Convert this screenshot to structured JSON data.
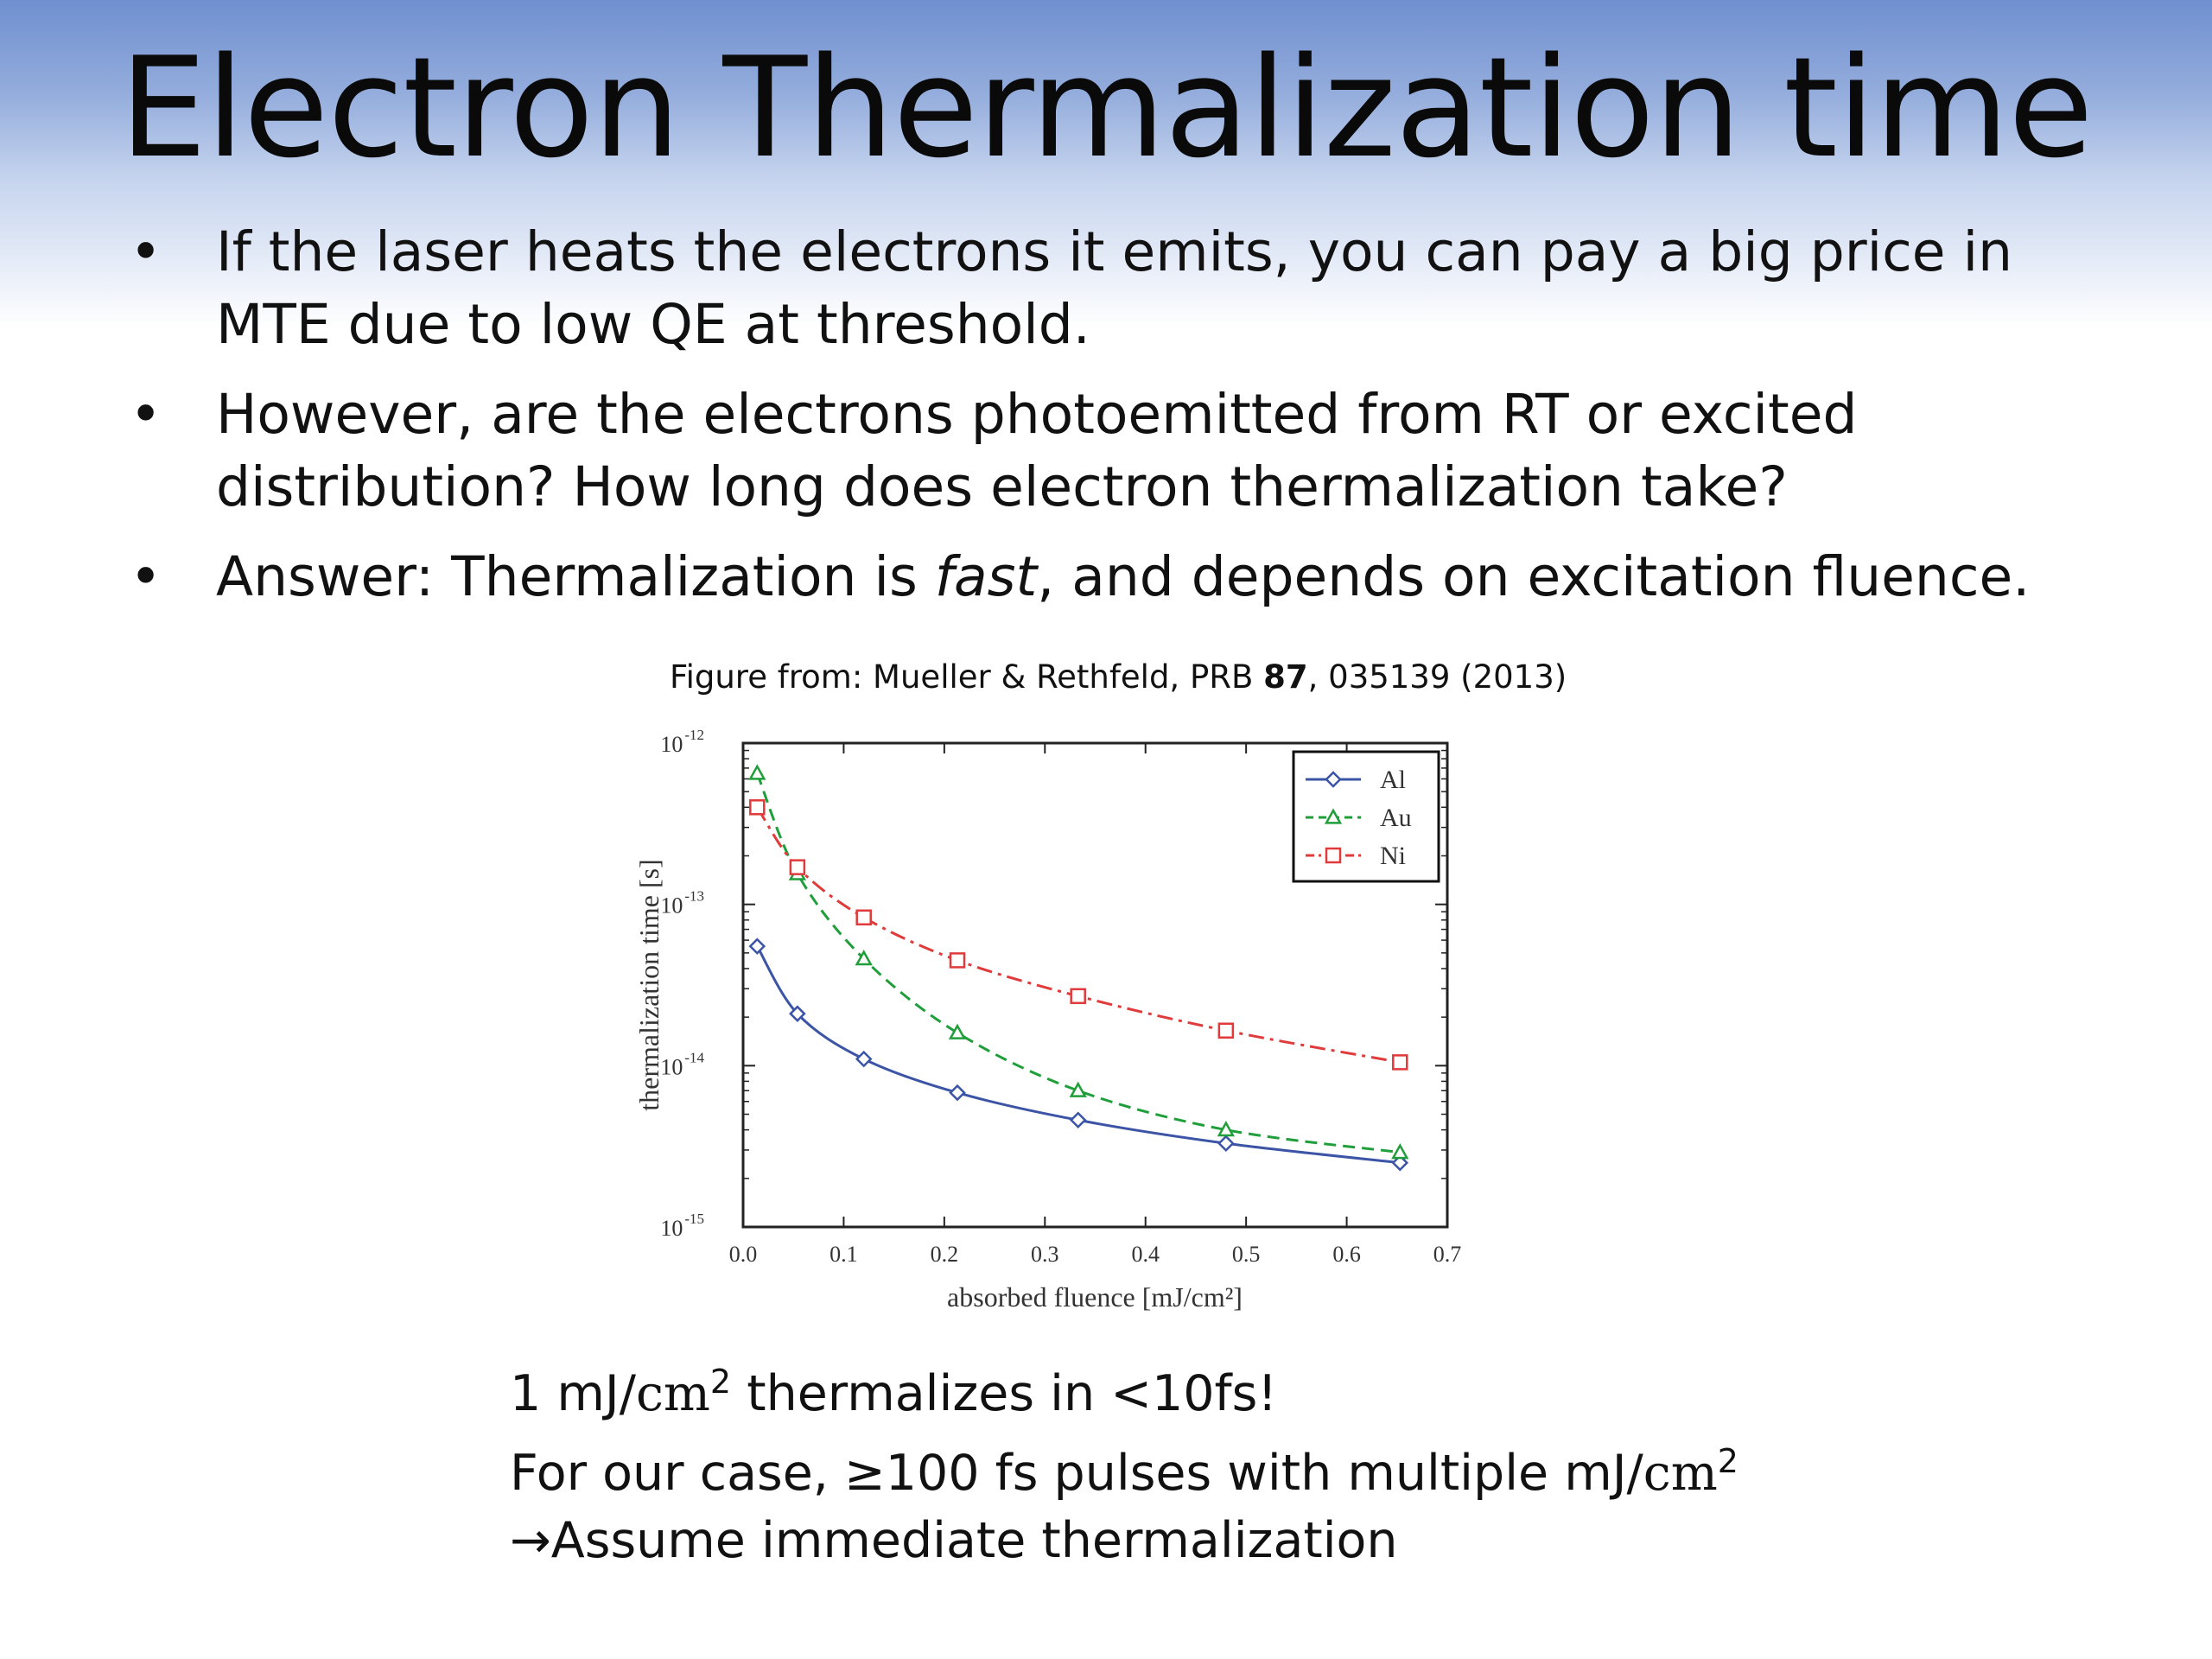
{
  "slide": {
    "title": "Electron Thermalization time",
    "bullets": [
      "If the laser heats the electrons it emits, you can pay a big price in MTE due to low QE at threshold.",
      "However, are the electrons photoemitted from RT or excited distribution? How long does electron thermalization take?"
    ],
    "bullet3": {
      "pre": "Answer: Thermalization is ",
      "italic": "fast",
      "post": ", and depends on excitation fluence."
    },
    "bullet_marker": "•",
    "credit": {
      "pre": "Figure from: Mueller & Rethfeld, PRB ",
      "bold": "87",
      "post": ", 035139 (2013)"
    },
    "notes": {
      "line1_num": "1 mJ/",
      "line1_unit": "cm",
      "line1_sup": "2",
      "line1_tail": " thermalizes in <10fs!",
      "line2_pre": "For our case,  ≥100 fs pulses with multiple mJ/",
      "line2_unit": "cm",
      "line2_sup": "2",
      "line3": "→Assume immediate thermalization"
    }
  },
  "chart_data": {
    "type": "line",
    "title": "",
    "xlabel": "absorbed fluence [mJ/cm²]",
    "ylabel": "thermalization time [s]",
    "xlim": [
      0.0,
      0.7
    ],
    "ylim": [
      1e-15,
      1e-12
    ],
    "yscale": "log",
    "xticks": [
      "0.0",
      "0.1",
      "0.2",
      "0.3",
      "0.4",
      "0.5",
      "0.6",
      "0.7"
    ],
    "yticks": [
      {
        "base": "10",
        "exp": "-12"
      },
      {
        "base": "10",
        "exp": "-13"
      },
      {
        "base": "10",
        "exp": "-14"
      },
      {
        "base": "10",
        "exp": "-15"
      }
    ],
    "legend_position": "top-right",
    "series": [
      {
        "name": "Al",
        "color": "#3b54a6",
        "marker": "diamond",
        "dash": "solid",
        "x": [
          0.014,
          0.054,
          0.12,
          0.213,
          0.333,
          0.48,
          0.653
        ],
        "y": [
          5.5e-14,
          2.1e-14,
          1.1e-14,
          6.8e-15,
          4.6e-15,
          3.3e-15,
          2.5e-15
        ]
      },
      {
        "name": "Au",
        "color": "#1f9e3a",
        "marker": "triangle",
        "dash": "dashed",
        "x": [
          0.014,
          0.054,
          0.12,
          0.213,
          0.333,
          0.48,
          0.653
        ],
        "y": [
          6.5e-13,
          1.55e-13,
          4.6e-14,
          1.6e-14,
          7e-15,
          4e-15,
          2.9e-15
        ]
      },
      {
        "name": "Ni",
        "color": "#e03a3a",
        "marker": "square",
        "dash": "dashdot",
        "x": [
          0.014,
          0.054,
          0.12,
          0.213,
          0.333,
          0.48,
          0.653
        ],
        "y": [
          4e-13,
          1.7e-13,
          8.3e-14,
          4.5e-14,
          2.7e-14,
          1.65e-14,
          1.05e-14
        ]
      }
    ]
  }
}
